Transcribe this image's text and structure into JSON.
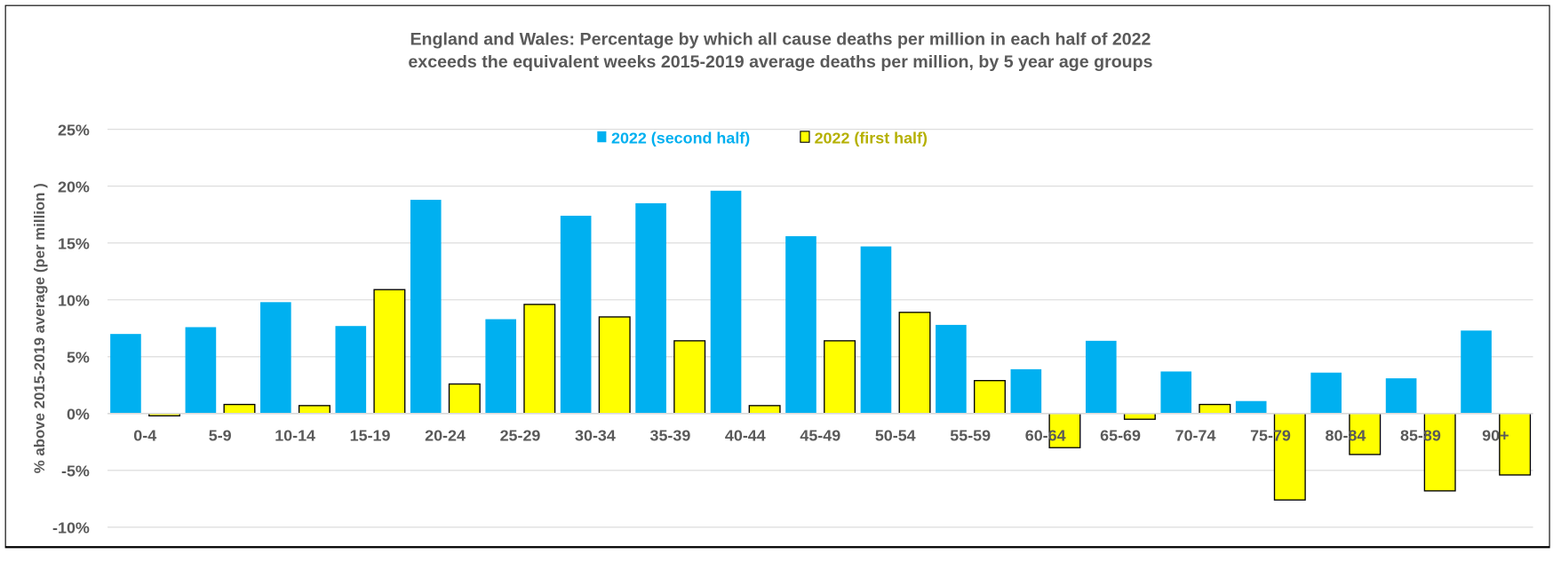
{
  "chart_data": {
    "type": "bar",
    "title_lines": [
      "England and Wales: Percentage by which all cause deaths per million  in each half of 2022",
      "exceeds the equivalent weeks 2015-2019 average deaths per million, by 5 year age groups"
    ],
    "xlabel": "",
    "ylabel": "% above 2015-2019 average (per million )",
    "ylim": [
      -10,
      25
    ],
    "yticks": [
      "-10%",
      "-5%",
      "0%",
      "5%",
      "10%",
      "15%",
      "20%",
      "25%"
    ],
    "ytick_values": [
      -10,
      -5,
      0,
      5,
      10,
      15,
      20,
      25
    ],
    "grid": true,
    "legend_position": "top-center",
    "categories": [
      "0-4",
      "5-9",
      "10-14",
      "15-19",
      "20-24",
      "25-29",
      "30-34",
      "35-39",
      "40-44",
      "45-49",
      "50-54",
      "55-59",
      "60-64",
      "65-69",
      "70-74",
      "75-79",
      "80-84",
      "85-89",
      "90+"
    ],
    "series": [
      {
        "name": "2022 (second half)",
        "color": "#00b0f0",
        "text_color": "#00b0f0",
        "values": [
          7.0,
          7.6,
          9.8,
          7.7,
          18.8,
          8.3,
          17.4,
          18.5,
          19.6,
          15.6,
          14.7,
          7.8,
          3.9,
          6.4,
          3.7,
          1.1,
          3.6,
          3.1,
          7.3
        ]
      },
      {
        "name": "2022 (first half)",
        "color": "#ffff00",
        "text_color": "#b5b000",
        "values": [
          -0.2,
          0.8,
          0.7,
          10.9,
          2.6,
          9.6,
          8.5,
          6.4,
          0.7,
          6.4,
          8.9,
          2.9,
          -3.0,
          -0.5,
          0.8,
          -7.6,
          -3.6,
          -6.8,
          -5.4
        ]
      }
    ]
  }
}
